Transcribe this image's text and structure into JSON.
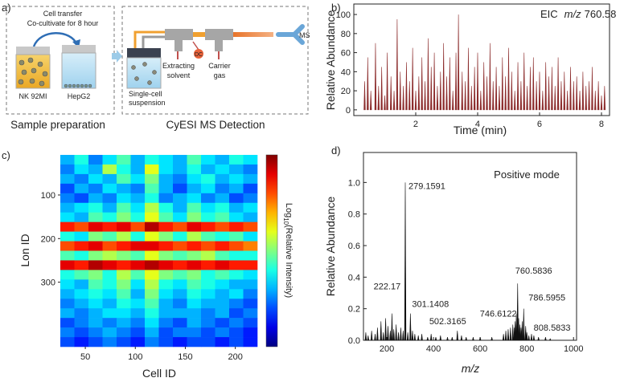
{
  "diagram": {
    "panel_labels": [
      "a)",
      "b)",
      "c)",
      "d)"
    ],
    "transfer_label": [
      "Cell transfer",
      "Co-cultivate for 8 hour"
    ],
    "cell_lines": [
      "NK 92MI",
      "HepG2"
    ],
    "suspension_label": [
      "Single-cell",
      "suspension"
    ],
    "solvent_label": [
      "Extracting",
      "solvent"
    ],
    "dc_label": "DC",
    "gas_label": [
      "Carrier",
      "gas"
    ],
    "ms_label": "MS",
    "section_titles": [
      "Sample preparation",
      "CyESI MS Detection"
    ]
  },
  "chart_data": [
    {
      "type": "stem",
      "xlabel": "Time (min)",
      "ylabel": "Relative Abundance",
      "annotation": {
        "prefix": "EIC",
        "variable": "m/z",
        "value": "760.58"
      },
      "xlim": [
        0,
        8.26
      ],
      "ylim": [
        -6,
        111
      ],
      "xticks": [
        2,
        4,
        6,
        8
      ],
      "yticks": [
        0,
        20,
        40,
        60,
        80,
        100
      ],
      "series": [
        {
          "color": "#8b2b2b",
          "x": [
            0.35,
            0.45,
            0.55,
            0.7,
            0.8,
            0.9,
            1.0,
            1.08,
            1.2,
            1.3,
            1.4,
            1.5,
            1.6,
            1.7,
            1.8,
            1.9,
            2.0,
            2.1,
            2.2,
            2.3,
            2.4,
            2.5,
            2.6,
            2.7,
            2.8,
            2.9,
            3.0,
            3.1,
            3.2,
            3.3,
            3.38,
            3.5,
            3.6,
            3.7,
            3.8,
            3.9,
            4.0,
            4.1,
            4.2,
            4.3,
            4.4,
            4.5,
            4.6,
            4.7,
            4.8,
            4.9,
            5.0,
            5.1,
            5.2,
            5.3,
            5.4,
            5.5,
            5.6,
            5.7,
            5.8,
            5.9,
            6.0,
            6.1,
            6.2,
            6.3,
            6.4,
            6.5,
            6.6,
            6.7,
            6.8,
            6.9,
            7.0,
            7.1,
            7.2,
            7.3,
            7.4,
            7.5,
            7.6,
            7.7,
            7.8,
            7.9,
            8.0,
            8.1
          ],
          "values": [
            30,
            55,
            20,
            70,
            25,
            45,
            15,
            60,
            35,
            20,
            95,
            40,
            25,
            50,
            30,
            65,
            20,
            35,
            55,
            30,
            75,
            45,
            60,
            25,
            40,
            70,
            35,
            55,
            20,
            60,
            100,
            40,
            30,
            65,
            25,
            45,
            60,
            20,
            50,
            35,
            70,
            30,
            45,
            25,
            55,
            35,
            65,
            40,
            20,
            50,
            30,
            60,
            25,
            45,
            55,
            30,
            40,
            20,
            50,
            35,
            45,
            25,
            55,
            30,
            40,
            20,
            45,
            30,
            35,
            20,
            40,
            25,
            30,
            45,
            20,
            30,
            15,
            25
          ]
        }
      ]
    },
    {
      "type": "heatmap",
      "xlabel": "Cell ID",
      "ylabel": "Lon ID",
      "colorbar_label": {
        "base": "Log",
        "subscript": "10",
        "rest": "(Relative  Intensity)"
      },
      "colormap": "jet",
      "clim": [
        0,
        1
      ],
      "xlim": [
        25,
        222
      ],
      "ylim": [
        8,
        448
      ],
      "y_reversed": true,
      "xticks": [
        50,
        100,
        150,
        200
      ],
      "yticks": [
        100,
        200,
        300
      ],
      "values": [
        [
          0.3,
          0.4,
          0.25,
          0.35,
          0.45,
          0.3,
          0.4,
          0.35,
          0.3,
          0.45,
          0.35,
          0.3,
          0.4,
          0.35
        ],
        [
          0.25,
          0.35,
          0.3,
          0.55,
          0.4,
          0.3,
          0.6,
          0.35,
          0.3,
          0.4,
          0.3,
          0.35,
          0.3,
          0.25
        ],
        [
          0.3,
          0.25,
          0.35,
          0.3,
          0.45,
          0.35,
          0.5,
          0.3,
          0.25,
          0.35,
          0.4,
          0.3,
          0.35,
          0.3
        ],
        [
          0.2,
          0.3,
          0.25,
          0.35,
          0.3,
          0.25,
          0.45,
          0.3,
          0.2,
          0.3,
          0.35,
          0.25,
          0.3,
          0.2
        ],
        [
          0.25,
          0.2,
          0.3,
          0.25,
          0.35,
          0.3,
          0.4,
          0.25,
          0.3,
          0.35,
          0.25,
          0.3,
          0.2,
          0.25
        ],
        [
          0.3,
          0.35,
          0.4,
          0.3,
          0.45,
          0.35,
          0.55,
          0.4,
          0.3,
          0.45,
          0.35,
          0.4,
          0.3,
          0.35
        ],
        [
          0.35,
          0.3,
          0.45,
          0.4,
          0.5,
          0.4,
          0.6,
          0.45,
          0.35,
          0.5,
          0.4,
          0.45,
          0.35,
          0.3
        ],
        [
          0.85,
          0.8,
          0.9,
          0.85,
          0.9,
          0.8,
          0.95,
          0.85,
          0.8,
          0.9,
          0.85,
          0.8,
          0.85,
          0.8
        ],
        [
          0.4,
          0.35,
          0.5,
          0.45,
          0.55,
          0.4,
          0.6,
          0.5,
          0.4,
          0.55,
          0.45,
          0.4,
          0.45,
          0.35
        ],
        [
          0.8,
          0.85,
          0.9,
          0.8,
          0.85,
          0.9,
          0.9,
          0.85,
          0.8,
          0.85,
          0.8,
          0.85,
          0.8,
          0.75
        ],
        [
          0.45,
          0.4,
          0.5,
          0.55,
          0.5,
          0.45,
          0.6,
          0.5,
          0.45,
          0.5,
          0.55,
          0.45,
          0.4,
          0.4
        ],
        [
          0.9,
          0.85,
          0.95,
          0.9,
          0.85,
          0.9,
          0.95,
          0.9,
          0.85,
          0.9,
          0.85,
          0.9,
          0.85,
          0.85
        ],
        [
          0.4,
          0.45,
          0.5,
          0.4,
          0.55,
          0.45,
          0.6,
          0.5,
          0.45,
          0.5,
          0.4,
          0.45,
          0.4,
          0.35
        ],
        [
          0.35,
          0.3,
          0.45,
          0.4,
          0.5,
          0.35,
          0.55,
          0.4,
          0.35,
          0.45,
          0.4,
          0.35,
          0.3,
          0.3
        ],
        [
          0.3,
          0.35,
          0.4,
          0.35,
          0.45,
          0.3,
          0.5,
          0.35,
          0.3,
          0.4,
          0.35,
          0.3,
          0.35,
          0.25
        ],
        [
          0.25,
          0.3,
          0.35,
          0.3,
          0.4,
          0.35,
          0.45,
          0.3,
          0.25,
          0.35,
          0.3,
          0.3,
          0.25,
          0.2
        ],
        [
          0.3,
          0.25,
          0.3,
          0.35,
          0.35,
          0.3,
          0.4,
          0.3,
          0.3,
          0.3,
          0.25,
          0.3,
          0.2,
          0.25
        ],
        [
          0.2,
          0.25,
          0.3,
          0.25,
          0.3,
          0.25,
          0.35,
          0.25,
          0.2,
          0.3,
          0.25,
          0.2,
          0.25,
          0.2
        ],
        [
          0.25,
          0.2,
          0.25,
          0.3,
          0.25,
          0.2,
          0.3,
          0.2,
          0.25,
          0.25,
          0.2,
          0.25,
          0.2,
          0.15
        ],
        [
          0.2,
          0.15,
          0.2,
          0.25,
          0.2,
          0.15,
          0.25,
          0.2,
          0.15,
          0.2,
          0.2,
          0.15,
          0.2,
          0.15
        ]
      ]
    },
    {
      "type": "stem",
      "xlabel": "m/z",
      "ylabel": "Relative Abundance",
      "annotation": "Positive mode",
      "xlim": [
        100,
        1013
      ],
      "ylim": [
        0,
        1.19
      ],
      "xticks": [
        200,
        400,
        600,
        800,
        1000
      ],
      "yticks": [
        {
          "value": 0,
          "label": "0.0"
        },
        0.2,
        0.4,
        0.6,
        0.8,
        {
          "value": 1,
          "label": "1.0"
        }
      ],
      "series": [
        {
          "color": "#111111",
          "labeled": true,
          "x": [
            222.17,
            279.1591,
            301.1408,
            502.3165,
            746.6122,
            760.5836,
            786.5955,
            808.5833
          ],
          "values": [
            0.17,
            1.0,
            0.17,
            0.06,
            0.08,
            0.36,
            0.2,
            0.03
          ]
        },
        {
          "color": "#111111",
          "x": [
            110,
            120,
            135,
            150,
            160,
            175,
            185,
            195,
            205,
            215,
            230,
            240,
            250,
            260,
            270,
            290,
            310,
            320,
            335,
            350,
            375,
            390,
            410,
            430,
            460,
            480,
            520,
            540,
            570,
            600,
            650,
            700,
            710,
            720,
            730,
            740,
            750,
            755,
            765,
            770,
            775,
            780,
            795,
            800,
            820,
            830,
            850,
            880,
            900
          ],
          "values": [
            0.05,
            0.03,
            0.06,
            0.04,
            0.08,
            0.12,
            0.05,
            0.14,
            0.09,
            0.06,
            0.07,
            0.1,
            0.05,
            0.08,
            0.06,
            0.05,
            0.06,
            0.04,
            0.03,
            0.04,
            0.02,
            0.04,
            0.02,
            0.03,
            0.02,
            0.02,
            0.03,
            0.02,
            0.02,
            0.02,
            0.02,
            0.04,
            0.06,
            0.07,
            0.08,
            0.1,
            0.12,
            0.17,
            0.14,
            0.1,
            0.08,
            0.12,
            0.09,
            0.05,
            0.04,
            0.03,
            0.02,
            0.02,
            0.01
          ]
        }
      ]
    }
  ]
}
